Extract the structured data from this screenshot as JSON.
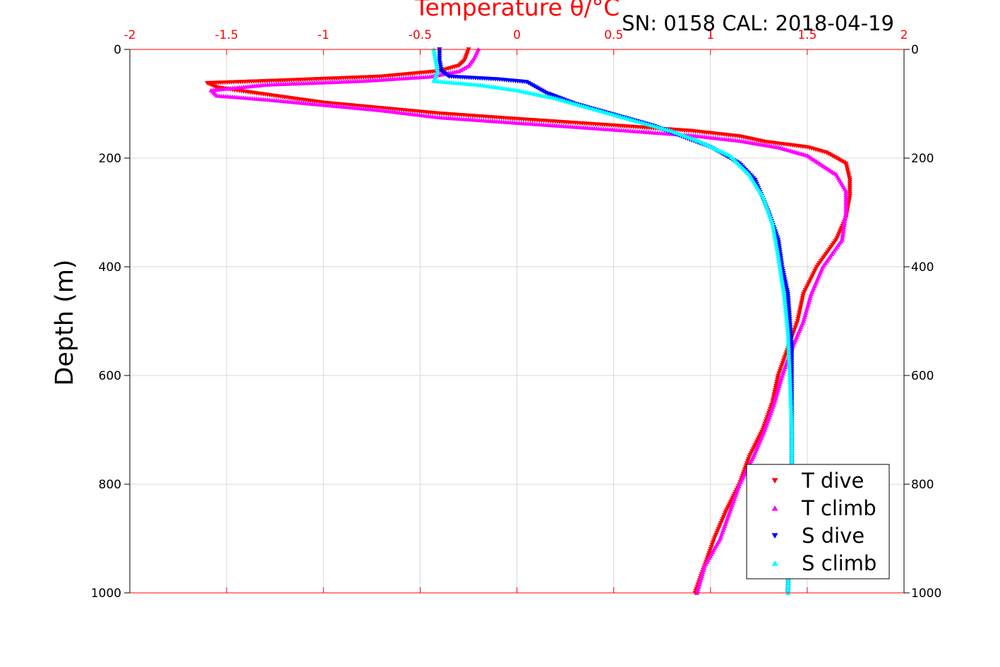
{
  "header": {
    "serial_cal": "SN: 0158  CAL: 2018-04-19"
  },
  "colors": {
    "temperature_axis": "#ff0000",
    "t_dive": "#ff0000",
    "t_climb": "#ff00ff",
    "s_dive": "#0000ff",
    "s_climb": "#00ffff",
    "grid": "#d9d9d9"
  },
  "chart_data": {
    "type": "scatter",
    "title": "Temperature θ/°C",
    "xlabel": "Temperature θ/°C",
    "ylabel": "Depth (m)",
    "xlim": [
      -2,
      2
    ],
    "ylim": [
      1000,
      0
    ],
    "y_reversed": true,
    "x_ticks": [
      "-2",
      "-1.5",
      "-1",
      "-0.5",
      "0",
      "0.5",
      "1",
      "1.5",
      "2"
    ],
    "y_ticks": [
      "0",
      "200",
      "400",
      "600",
      "800",
      "1000"
    ],
    "grid": true,
    "legend_position": "bottom-right",
    "legend": [
      "T dive",
      "T climb",
      "S dive",
      "S climb"
    ],
    "series": [
      {
        "name": "T dive",
        "marker": "triangle-down",
        "points": [
          [
            -0.25,
            0
          ],
          [
            -0.26,
            10
          ],
          [
            -0.27,
            20
          ],
          [
            -0.3,
            30
          ],
          [
            -0.4,
            40
          ],
          [
            -0.7,
            50
          ],
          [
            -1.2,
            57
          ],
          [
            -1.6,
            62
          ],
          [
            -1.55,
            70
          ],
          [
            -1.4,
            78
          ],
          [
            -1.2,
            88
          ],
          [
            -1.0,
            98
          ],
          [
            -0.7,
            108
          ],
          [
            -0.4,
            118
          ],
          [
            0.0,
            128
          ],
          [
            0.5,
            140
          ],
          [
            0.9,
            150
          ],
          [
            1.15,
            160
          ],
          [
            1.28,
            170
          ],
          [
            1.5,
            180
          ],
          [
            1.6,
            190
          ],
          [
            1.7,
            210
          ],
          [
            1.72,
            240
          ],
          [
            1.72,
            270
          ],
          [
            1.7,
            310
          ],
          [
            1.65,
            350
          ],
          [
            1.55,
            400
          ],
          [
            1.48,
            450
          ],
          [
            1.45,
            500
          ],
          [
            1.4,
            550
          ],
          [
            1.35,
            600
          ],
          [
            1.32,
            650
          ],
          [
            1.27,
            700
          ],
          [
            1.2,
            750
          ],
          [
            1.15,
            800
          ],
          [
            1.08,
            850
          ],
          [
            1.02,
            900
          ],
          [
            0.97,
            950
          ],
          [
            0.92,
            1000
          ]
        ]
      },
      {
        "name": "T climb",
        "marker": "triangle-up",
        "points": [
          [
            -0.2,
            0
          ],
          [
            -0.22,
            15
          ],
          [
            -0.25,
            30
          ],
          [
            -0.3,
            40
          ],
          [
            -0.45,
            50
          ],
          [
            -0.8,
            58
          ],
          [
            -1.3,
            65
          ],
          [
            -1.58,
            75
          ],
          [
            -1.55,
            85
          ],
          [
            -1.3,
            92
          ],
          [
            -1.0,
            102
          ],
          [
            -0.7,
            112
          ],
          [
            -0.4,
            125
          ],
          [
            0.0,
            135
          ],
          [
            0.4,
            145
          ],
          [
            0.9,
            158
          ],
          [
            1.15,
            168
          ],
          [
            1.35,
            180
          ],
          [
            1.5,
            195
          ],
          [
            1.65,
            230
          ],
          [
            1.7,
            260
          ],
          [
            1.7,
            300
          ],
          [
            1.68,
            350
          ],
          [
            1.58,
            400
          ],
          [
            1.52,
            450
          ],
          [
            1.48,
            500
          ],
          [
            1.42,
            550
          ],
          [
            1.37,
            600
          ],
          [
            1.33,
            650
          ],
          [
            1.28,
            700
          ],
          [
            1.22,
            750
          ],
          [
            1.15,
            800
          ],
          [
            1.1,
            850
          ],
          [
            1.05,
            900
          ],
          [
            0.97,
            950
          ],
          [
            0.93,
            1000
          ]
        ]
      },
      {
        "name": "S dive",
        "marker": "triangle-down",
        "points": [
          [
            -0.4,
            0
          ],
          [
            -0.4,
            20
          ],
          [
            -0.39,
            40
          ],
          [
            -0.35,
            50
          ],
          [
            -0.1,
            55
          ],
          [
            0.05,
            60
          ],
          [
            0.15,
            80
          ],
          [
            0.3,
            100
          ],
          [
            0.5,
            120
          ],
          [
            0.7,
            140
          ],
          [
            0.85,
            160
          ],
          [
            1.0,
            180
          ],
          [
            1.15,
            210
          ],
          [
            1.23,
            240
          ],
          [
            1.3,
            300
          ],
          [
            1.35,
            350
          ],
          [
            1.37,
            400
          ],
          [
            1.4,
            450
          ],
          [
            1.41,
            500
          ],
          [
            1.42,
            550
          ],
          [
            1.42,
            600
          ],
          [
            1.42,
            650
          ],
          [
            1.42,
            700
          ],
          [
            1.42,
            800
          ],
          [
            1.41,
            900
          ],
          [
            1.4,
            1000
          ]
        ]
      },
      {
        "name": "S climb",
        "marker": "triangle-up",
        "points": [
          [
            -0.43,
            0
          ],
          [
            -0.42,
            20
          ],
          [
            -0.41,
            40
          ],
          [
            -0.43,
            58
          ],
          [
            -0.2,
            65
          ],
          [
            0.0,
            75
          ],
          [
            0.2,
            90
          ],
          [
            0.4,
            110
          ],
          [
            0.6,
            130
          ],
          [
            0.8,
            150
          ],
          [
            0.95,
            170
          ],
          [
            1.1,
            195
          ],
          [
            1.2,
            230
          ],
          [
            1.27,
            270
          ],
          [
            1.32,
            320
          ],
          [
            1.35,
            380
          ],
          [
            1.38,
            450
          ],
          [
            1.4,
            520
          ],
          [
            1.41,
            600
          ],
          [
            1.42,
            700
          ],
          [
            1.42,
            800
          ],
          [
            1.41,
            900
          ],
          [
            1.4,
            1000
          ]
        ]
      }
    ]
  }
}
